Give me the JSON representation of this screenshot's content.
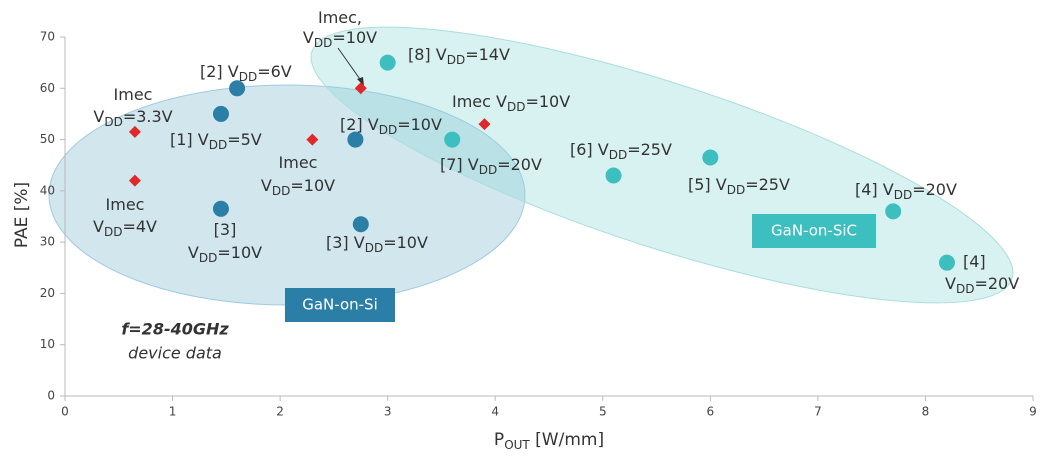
{
  "chart_data": {
    "type": "scatter",
    "x_label": [
      "P",
      "OUT",
      " [W/mm]"
    ],
    "y_label": "PAE [%]",
    "xlim": [
      0,
      9
    ],
    "xticks": [
      0,
      1,
      2,
      3,
      4,
      5,
      6,
      7,
      8,
      9
    ],
    "ylim": [
      0,
      70
    ],
    "yticks": [
      0,
      10,
      20,
      30,
      40,
      50,
      60,
      70
    ],
    "grid": false,
    "series": [
      {
        "name": "GaN-on-Si",
        "color": "#2b7fa6",
        "marker": "circle",
        "x": [
          1.6,
          1.45,
          1.45,
          2.7,
          2.75
        ],
        "values": [
          60,
          55,
          36.5,
          50,
          33.5
        ]
      },
      {
        "name": "GaN-on-SiC",
        "color": "#3dbfc0",
        "marker": "circle",
        "x": [
          3.0,
          3.6,
          5.1,
          6.0,
          7.7,
          8.2
        ],
        "values": [
          65,
          50,
          43,
          46.5,
          36,
          26
        ]
      },
      {
        "color": "#e0282a",
        "marker": "diamond",
        "x": [
          0.65,
          0.65,
          2.3,
          2.75,
          3.9
        ],
        "values": [
          51.5,
          42,
          50,
          60,
          53
        ]
      }
    ],
    "notes": [
      "f=28-40GHz",
      "device data"
    ],
    "annotations": [
      {
        "lines": [
          [
            "Imec,"
          ],
          [
            "V",
            "DD",
            "=10V"
          ]
        ]
      },
      {
        "lines": [
          [
            "[8] V",
            "DD",
            "=14V"
          ]
        ]
      },
      {
        "lines": [
          [
            "[2] V",
            "DD",
            "=6V"
          ]
        ]
      },
      {
        "lines": [
          [
            "Imec"
          ],
          [
            "V",
            "DD",
            "=3.3V"
          ]
        ]
      },
      {
        "lines": [
          [
            "[1] V",
            "DD",
            "=5V"
          ]
        ]
      },
      {
        "lines": [
          [
            "[2] V",
            "DD",
            "=10V"
          ]
        ]
      },
      {
        "lines": [
          [
            "Imec V",
            "DD",
            "=10V"
          ]
        ]
      },
      {
        "lines": [
          [
            "Imec"
          ],
          [
            "V",
            "DD",
            "=10V"
          ]
        ]
      },
      {
        "lines": [
          [
            "[7] V",
            "DD",
            "=20V"
          ]
        ]
      },
      {
        "lines": [
          [
            "[6] V",
            "DD",
            "=25V"
          ]
        ]
      },
      {
        "lines": [
          [
            "[5] V",
            "DD",
            "=25V"
          ]
        ]
      },
      {
        "lines": [
          [
            "[4] V",
            "DD",
            "=20V"
          ]
        ]
      },
      {
        "lines": [
          [
            "[4]"
          ],
          [
            "V",
            "DD",
            "=20V"
          ]
        ]
      },
      {
        "lines": [
          [
            "Imec"
          ],
          [
            "V",
            "DD",
            "=4V"
          ]
        ]
      },
      {
        "lines": [
          [
            "[3]"
          ],
          [
            "V",
            "DD",
            "=10V"
          ]
        ]
      },
      {
        "lines": [
          [
            "[3] V",
            "DD",
            "=10V"
          ]
        ]
      }
    ]
  }
}
